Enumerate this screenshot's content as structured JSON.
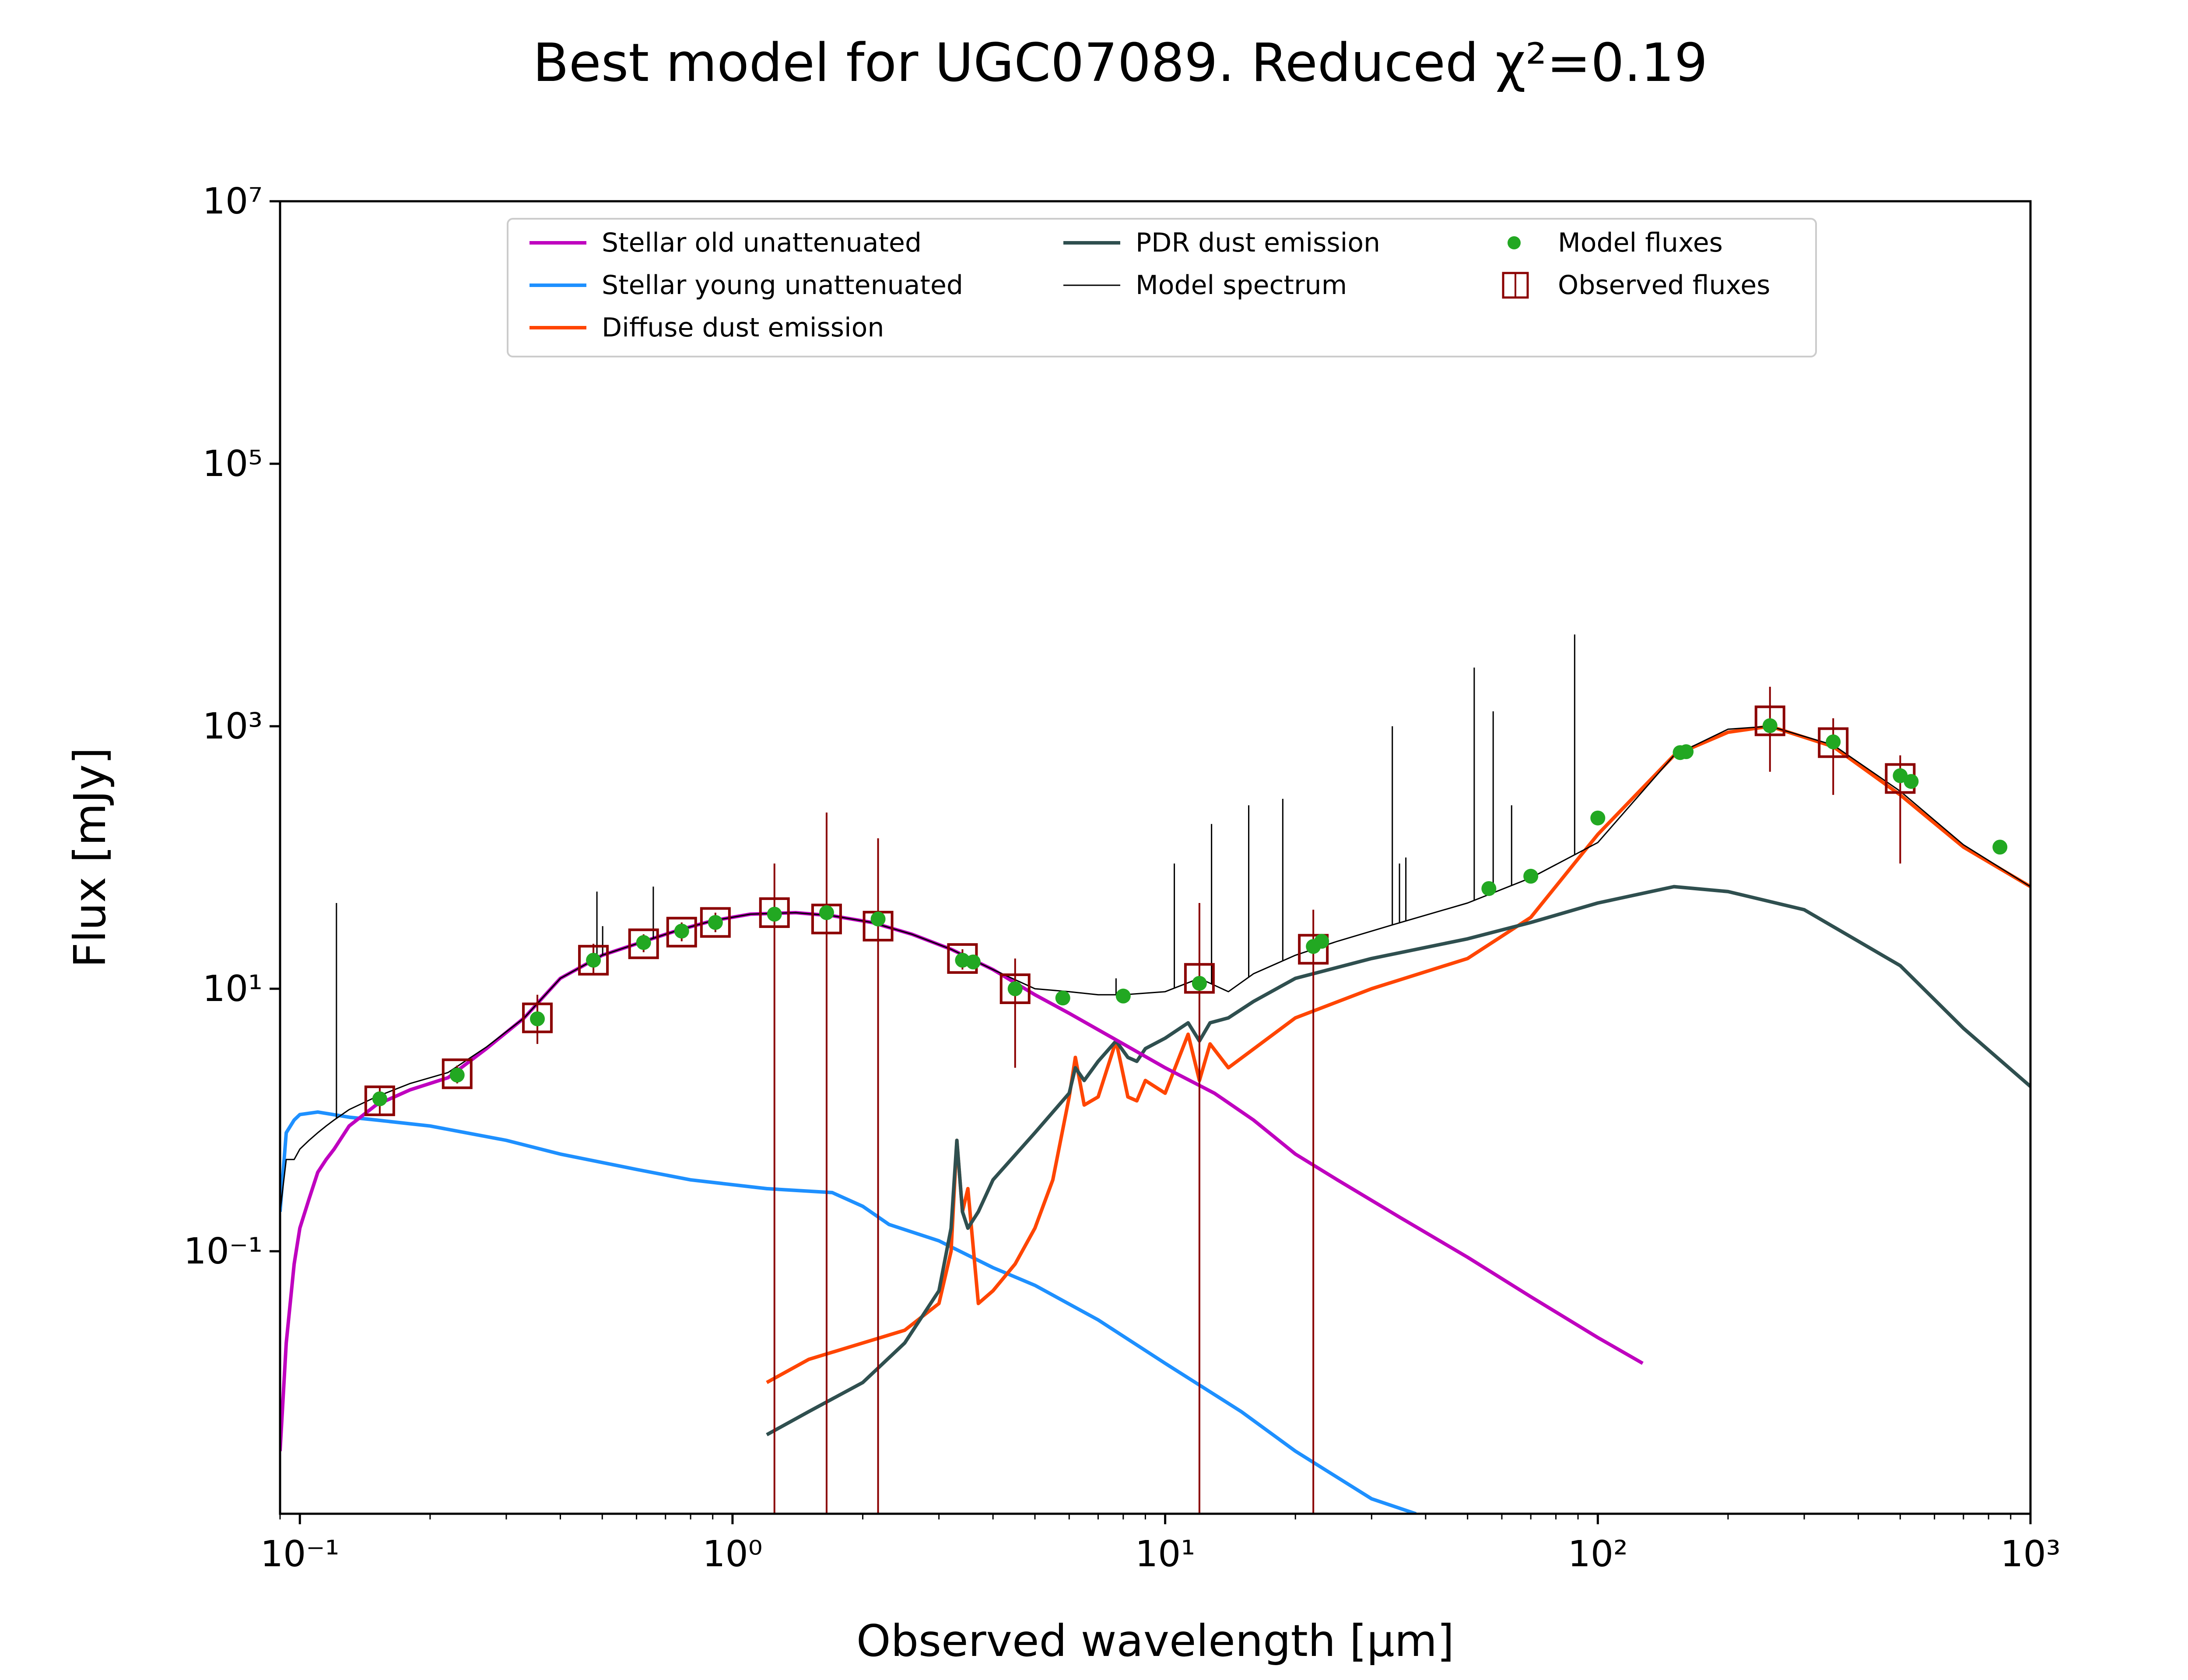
{
  "chart_data": {
    "type": "line",
    "title": "Best model for UGC07089. Reduced χ²=0.19",
    "xlabel": "Observed wavelength [μm]",
    "ylabel": "Flux [mJy]",
    "xscale": "log",
    "yscale": "log",
    "xlim": [
      0.09,
      1000
    ],
    "ylim": [
      0.001,
      10000000
    ],
    "x_ticks": [
      {
        "value": 0.1,
        "label": "10⁻¹"
      },
      {
        "value": 1,
        "label": "10⁰"
      },
      {
        "value": 10,
        "label": "10¹"
      },
      {
        "value": 100,
        "label": "10²"
      },
      {
        "value": 1000,
        "label": "10³"
      }
    ],
    "y_ticks": [
      {
        "value": 0.1,
        "label": "10⁻¹"
      },
      {
        "value": 10,
        "label": "10¹"
      },
      {
        "value": 1000,
        "label": "10³"
      },
      {
        "value": 100000,
        "label": "10⁵"
      },
      {
        "value": 10000000,
        "label": "10⁷"
      }
    ],
    "grid": false,
    "legend_position": "top-center",
    "series": [
      {
        "name": "Stellar old unattenuated",
        "color": "#bf00bf",
        "width": 8,
        "x": [
          0.09,
          0.093,
          0.097,
          0.1,
          0.105,
          0.11,
          0.115,
          0.12,
          0.13,
          0.15,
          0.18,
          0.22,
          0.27,
          0.33,
          0.4,
          0.5,
          0.6,
          0.75,
          0.9,
          1.1,
          1.4,
          1.7,
          2.1,
          2.6,
          3.2,
          4,
          5,
          6,
          8,
          10,
          13,
          16,
          20,
          25,
          35,
          50,
          70,
          100,
          127
        ],
        "y": [
          0.003,
          0.02,
          0.08,
          0.15,
          0.25,
          0.4,
          0.5,
          0.6,
          0.9,
          1.3,
          1.7,
          2.1,
          3.5,
          6,
          12,
          18,
          22,
          28,
          33,
          37,
          38,
          36,
          32,
          26,
          20,
          14,
          9,
          6.5,
          3.8,
          2.5,
          1.6,
          1.0,
          0.55,
          0.35,
          0.18,
          0.09,
          0.045,
          0.022,
          0.014
        ]
      },
      {
        "name": "Stellar young unattenuated",
        "color": "#1e90ff",
        "width": 8,
        "x": [
          0.09,
          0.093,
          0.097,
          0.1,
          0.11,
          0.13,
          0.15,
          0.2,
          0.3,
          0.4,
          0.6,
          0.8,
          1.2,
          1.7,
          2.0,
          2.3,
          3,
          4,
          5,
          7,
          10,
          15,
          20,
          30,
          38
        ],
        "y": [
          0.2,
          0.8,
          1.0,
          1.1,
          1.15,
          1.05,
          1.0,
          0.9,
          0.7,
          0.55,
          0.42,
          0.35,
          0.3,
          0.28,
          0.22,
          0.16,
          0.12,
          0.075,
          0.055,
          0.03,
          0.014,
          0.006,
          0.003,
          0.0013,
          0.001
        ]
      },
      {
        "name": "Diffuse dust emission",
        "color": "#ff4500",
        "width": 8,
        "x": [
          1.2,
          1.5,
          2,
          2.5,
          3.0,
          3.2,
          3.3,
          3.4,
          3.5,
          3.7,
          4,
          4.5,
          5,
          5.5,
          6.0,
          6.2,
          6.5,
          7,
          7.7,
          8.2,
          8.6,
          9,
          10,
          11.3,
          12,
          12.7,
          14,
          20,
          30,
          50,
          70,
          100,
          150,
          200,
          250,
          350,
          500,
          700,
          1000
        ],
        "y": [
          0.01,
          0.015,
          0.02,
          0.025,
          0.04,
          0.1,
          0.7,
          0.2,
          0.3,
          0.04,
          0.05,
          0.08,
          0.15,
          0.35,
          1.5,
          3.0,
          1.3,
          1.5,
          4.0,
          1.5,
          1.4,
          2.0,
          1.6,
          4.5,
          2.0,
          3.8,
          2.5,
          6,
          10,
          17,
          35,
          150,
          600,
          900,
          1000,
          700,
          300,
          120,
          60
        ]
      },
      {
        "name": "PDR dust emission",
        "color": "#2f4f4f",
        "width": 8,
        "x": [
          1.2,
          1.5,
          2,
          2.5,
          3.0,
          3.2,
          3.3,
          3.4,
          3.5,
          3.7,
          4,
          5,
          6.0,
          6.2,
          6.5,
          7,
          7.7,
          8.2,
          8.6,
          9,
          10,
          11.3,
          12,
          12.7,
          14,
          16,
          20,
          30,
          50,
          70,
          100,
          150,
          200,
          300,
          500,
          700,
          1000
        ],
        "y": [
          0.004,
          0.006,
          0.01,
          0.02,
          0.05,
          0.15,
          0.7,
          0.2,
          0.15,
          0.2,
          0.35,
          0.8,
          1.6,
          2.5,
          2.0,
          2.8,
          4.0,
          3.0,
          2.8,
          3.5,
          4.2,
          5.5,
          4.0,
          5.5,
          6.0,
          8,
          12,
          17,
          24,
          32,
          45,
          60,
          55,
          40,
          15,
          5,
          1.8
        ]
      },
      {
        "name": "Model spectrum",
        "color": "#000000",
        "width": 3,
        "x": [
          0.09,
          0.093,
          0.097,
          0.1,
          0.105,
          0.11,
          0.115,
          0.12,
          0.13,
          0.15,
          0.18,
          0.22,
          0.27,
          0.33,
          0.4,
          0.5,
          0.6,
          0.75,
          0.9,
          1.1,
          1.4,
          1.7,
          2.1,
          2.6,
          3.2,
          4,
          5,
          6,
          7,
          8,
          10,
          12,
          14,
          16,
          20,
          25,
          35,
          50,
          70,
          100,
          150,
          200,
          250,
          350,
          500,
          700,
          1000
        ],
        "y": [
          0.2,
          0.5,
          0.5,
          0.6,
          0.7,
          0.8,
          0.9,
          1.0,
          1.2,
          1.5,
          1.9,
          2.3,
          3.6,
          6,
          12,
          18,
          22,
          28,
          33,
          37,
          38,
          36,
          32,
          26,
          20,
          14,
          10,
          9.5,
          9,
          9,
          9.5,
          12,
          9.5,
          13,
          18,
          23,
          32,
          45,
          70,
          130,
          600,
          950,
          1000,
          720,
          320,
          125,
          60
        ]
      },
      {
        "name": "Model fluxes",
        "kind": "points",
        "color": "#22a822",
        "x": [
          0.153,
          0.231,
          0.354,
          0.477,
          0.623,
          0.763,
          0.913,
          1.25,
          1.65,
          2.17,
          3.4,
          3.6,
          4.5,
          5.8,
          8.0,
          12.0,
          22.0,
          23.0,
          56,
          70,
          100,
          155,
          160,
          250,
          350,
          500,
          530,
          850
        ],
        "y": [
          1.45,
          2.2,
          5.9,
          16.5,
          22.5,
          27.5,
          32,
          37,
          38,
          34,
          16.5,
          16,
          10,
          8.5,
          8.8,
          11,
          21,
          23,
          58,
          72,
          200,
          630,
          640,
          1010,
          760,
          420,
          380,
          120
        ]
      },
      {
        "name": "Observed fluxes",
        "kind": "boxes",
        "color": "#8b0000",
        "x": [
          0.153,
          0.231,
          0.354,
          0.477,
          0.623,
          0.763,
          0.913,
          1.25,
          1.65,
          2.17,
          3.4,
          4.5,
          12.0,
          22.0,
          250,
          350,
          500
        ],
        "y": [
          1.4,
          2.25,
          6,
          16.5,
          22,
          27,
          32,
          38,
          34,
          30,
          17,
          10,
          12,
          20,
          1100,
          750,
          400
        ],
        "err_low": [
          1.1,
          1.9,
          3.8,
          13,
          19,
          23,
          27,
          0.001,
          0.001,
          0.001,
          14,
          2.5,
          0.001,
          0.001,
          450,
          300,
          90
        ],
        "err_high": [
          1.8,
          2.6,
          9,
          22,
          26,
          32,
          38,
          90,
          220,
          140,
          20,
          17,
          45,
          40,
          2000,
          1150,
          600
        ]
      }
    ]
  },
  "lines": {
    "model_spectrum_lines": [
      {
        "x": 0.1215,
        "y": 45
      },
      {
        "x": 0.486,
        "y": 55
      },
      {
        "x": 0.656,
        "y": 60
      },
      {
        "x": 0.501,
        "y": 30
      },
      {
        "x": 7.7,
        "y": 12
      },
      {
        "x": 10.5,
        "y": 90
      },
      {
        "x": 12.8,
        "y": 180
      },
      {
        "x": 15.6,
        "y": 250
      },
      {
        "x": 18.7,
        "y": 280
      },
      {
        "x": 33.5,
        "y": 1000
      },
      {
        "x": 34.8,
        "y": 90
      },
      {
        "x": 36.0,
        "y": 100
      },
      {
        "x": 51.8,
        "y": 2800
      },
      {
        "x": 57.3,
        "y": 1300
      },
      {
        "x": 63.2,
        "y": 250
      },
      {
        "x": 88.4,
        "y": 5000
      }
    ]
  }
}
